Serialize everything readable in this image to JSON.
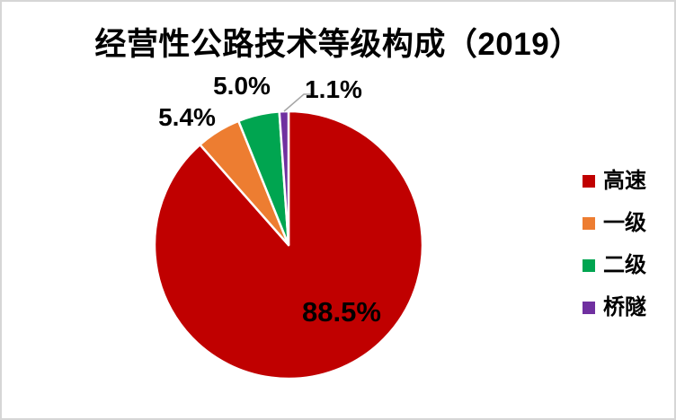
{
  "chart_data": {
    "type": "pie",
    "title": "经营性公路技术等级构成（2019）",
    "unit": "%",
    "start_angle_deg": 0,
    "direction": "clockwise",
    "legend_position": "right",
    "slices": [
      {
        "name": "高速",
        "value": 88.5,
        "label": "88.5%",
        "color": "#C00000",
        "label_position": "inside"
      },
      {
        "name": "一级",
        "value": 5.4,
        "label": "5.4%",
        "color": "#ED7D31",
        "label_position": "outside"
      },
      {
        "name": "二级",
        "value": 5.0,
        "label": "5.0%",
        "color": "#00A550",
        "label_position": "outside"
      },
      {
        "name": "桥隧",
        "value": 1.1,
        "label": "1.1%",
        "color": "#7030A0",
        "label_position": "outside-with-leader"
      }
    ]
  },
  "colors": {
    "background": "#FFFFFF",
    "panel_border": "#D6D6D6",
    "slice_separator": "#FFFFFF",
    "leader_line": "#A6A6A6",
    "text": "#000000"
  }
}
